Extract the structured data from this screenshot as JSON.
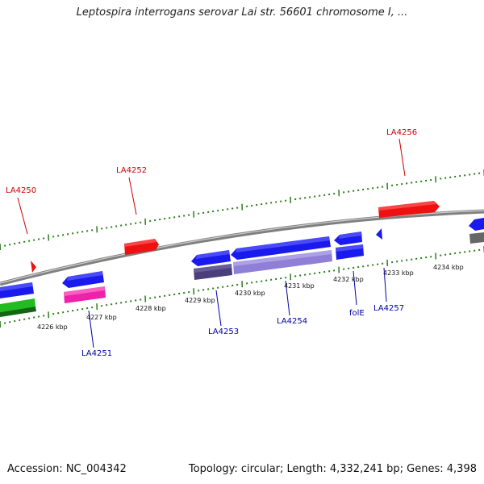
{
  "title": "Leptospira interrogans serovar Lai str. 56601 chromosome I, ...",
  "accession": "Accession: NC_004342",
  "topology": "Topology: circular; Length: 4,332,241 bp; Genes: 4,398",
  "colors": {
    "background": "#ffffff",
    "backbone": "#8a8a8a",
    "tick": "#2e7d1e",
    "gene_label_plus": "#cc0000",
    "gene_label_minus": "#0000aa",
    "gene_blue": "#1a1aee",
    "gene_red": "#ee1111",
    "gene_magenta": "#ee22aa",
    "gene_green": "#22bb22",
    "gene_darkgreen": "#116611",
    "gene_darkpurple": "#4a3f7a",
    "gene_lightpurple": "#8f7fd6",
    "gene_gray": "#666666"
  },
  "kbp_labels": [
    "4226 kbp",
    "4227 kbp",
    "4228 kbp",
    "4229 kbp",
    "4230 kbp",
    "4231 kbp",
    "4232 kbp",
    "4233 kbp",
    "4234 kbp"
  ],
  "gene_labels_top": [
    "LA4250",
    "LA4252",
    "LA4256"
  ],
  "gene_labels_bottom": [
    "LA4251",
    "LA4253",
    "LA4254",
    "folE",
    "LA4257"
  ]
}
